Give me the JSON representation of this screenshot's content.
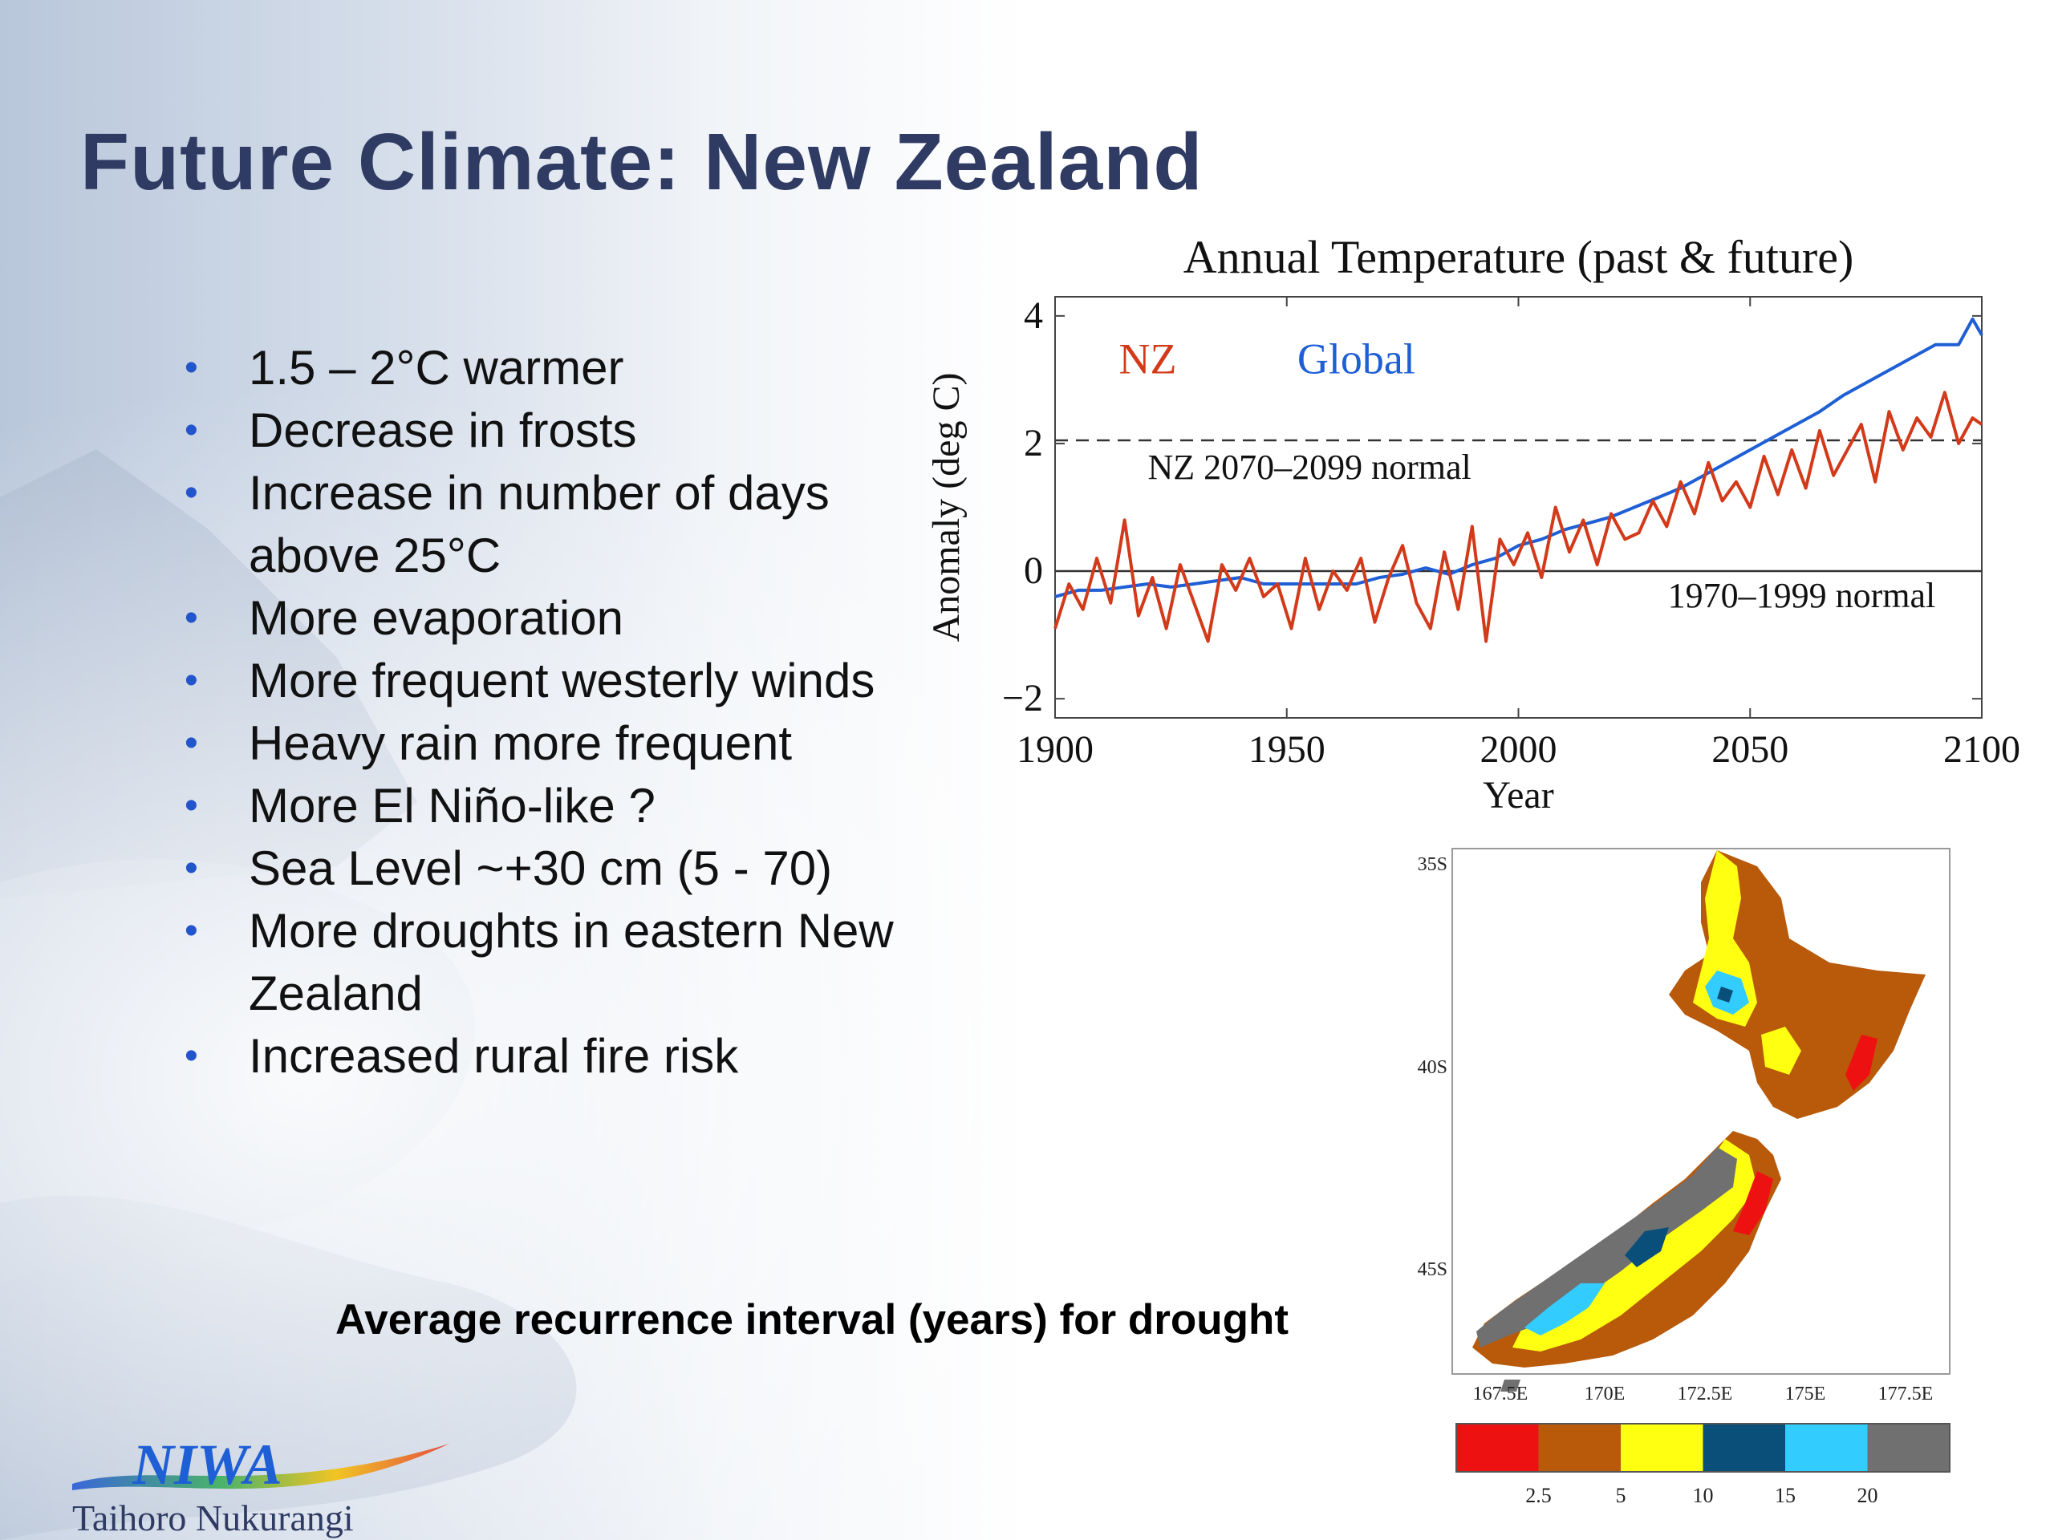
{
  "slide": {
    "title": "Future Climate: New Zealand",
    "bullets": [
      "1.5 – 2°C warmer",
      "Decrease in frosts",
      "Increase in number of days above 25°C",
      "More evaporation",
      "More frequent westerly winds",
      "Heavy rain more frequent",
      "More El Niño-like ?",
      "Sea Level ~+30 cm (5 - 70)",
      "More droughts in eastern New Zealand",
      "Increased rural fire risk"
    ],
    "caption": "Average recurrence interval (years) for drought",
    "logo": {
      "name": "NIWA",
      "subtitle": "Taihoro Nukurangi"
    }
  },
  "chart_data": [
    {
      "type": "line",
      "title": "Annual Temperature (past & future)",
      "xlabel": "Year",
      "ylabel": "Anomaly (deg C)",
      "xlim": [
        1900,
        2100
      ],
      "ylim": [
        -2.3,
        4.3
      ],
      "xticks": [
        1900,
        1950,
        2000,
        2050,
        2100
      ],
      "yticks": [
        -2,
        0,
        2,
        4
      ],
      "legend_labels": [
        {
          "text": "NZ",
          "color": "#d23a1a"
        },
        {
          "text": "Global",
          "color": "#1f5fd6"
        }
      ],
      "reference_lines": [
        {
          "y": 2.05,
          "style": "dashed",
          "label": "NZ 2070–2099 normal"
        },
        {
          "y": 0,
          "style": "solid",
          "label": "1970–1999 normal"
        }
      ],
      "series": [
        {
          "color": "#1f5fd6",
          "x": [
            1900,
            1905,
            1910,
            1915,
            1920,
            1925,
            1930,
            1935,
            1940,
            1945,
            1950,
            1955,
            1960,
            1965,
            1970,
            1975,
            1980,
            1985,
            1990,
            1995,
            2000,
            2005,
            2010,
            2015,
            2020,
            2025,
            2030,
            2035,
            2040,
            2045,
            2050,
            2055,
            2060,
            2065,
            2070,
            2075,
            2080,
            2085,
            2090,
            2095,
            2098,
            2100
          ],
          "y": [
            -0.4,
            -0.3,
            -0.3,
            -0.25,
            -0.2,
            -0.25,
            -0.2,
            -0.15,
            -0.1,
            -0.2,
            -0.2,
            -0.2,
            -0.2,
            -0.2,
            -0.1,
            -0.05,
            0.05,
            -0.05,
            0.1,
            0.2,
            0.4,
            0.5,
            0.65,
            0.75,
            0.85,
            1.0,
            1.15,
            1.3,
            1.5,
            1.7,
            1.9,
            2.1,
            2.3,
            2.5,
            2.75,
            2.95,
            3.15,
            3.35,
            3.55,
            3.55,
            3.95,
            3.7
          ]
        },
        {
          "color": "#d23a1a",
          "x": [
            1900,
            1903,
            1906,
            1909,
            1912,
            1915,
            1918,
            1921,
            1924,
            1927,
            1930,
            1933,
            1936,
            1939,
            1942,
            1945,
            1948,
            1951,
            1954,
            1957,
            1960,
            1963,
            1966,
            1969,
            1972,
            1975,
            1978,
            1981,
            1984,
            1987,
            1990,
            1993,
            1996,
            1999,
            2002,
            2005,
            2008,
            2011,
            2014,
            2017,
            2020,
            2023,
            2026,
            2029,
            2032,
            2035,
            2038,
            2041,
            2044,
            2047,
            2050,
            2053,
            2056,
            2059,
            2062,
            2065,
            2068,
            2071,
            2074,
            2077,
            2080,
            2083,
            2086,
            2089,
            2092,
            2095,
            2098,
            2100
          ],
          "y": [
            -0.9,
            -0.2,
            -0.6,
            0.2,
            -0.5,
            0.8,
            -0.7,
            -0.1,
            -0.9,
            0.1,
            -0.5,
            -1.1,
            0.1,
            -0.3,
            0.2,
            -0.4,
            -0.2,
            -0.9,
            0.2,
            -0.6,
            0.0,
            -0.3,
            0.2,
            -0.8,
            -0.1,
            0.4,
            -0.5,
            -0.9,
            0.3,
            -0.6,
            0.7,
            -1.1,
            0.5,
            0.1,
            0.6,
            -0.1,
            1.0,
            0.3,
            0.8,
            0.1,
            0.9,
            0.5,
            0.6,
            1.1,
            0.7,
            1.4,
            0.9,
            1.7,
            1.1,
            1.4,
            1.0,
            1.8,
            1.2,
            1.9,
            1.3,
            2.2,
            1.5,
            1.9,
            2.3,
            1.4,
            2.5,
            1.9,
            2.4,
            2.1,
            2.8,
            2.0,
            2.4,
            2.3
          ]
        }
      ]
    },
    {
      "type": "heatmap",
      "axis_x_ticks": [
        "167.5E",
        "170E",
        "172.5E",
        "175E",
        "177.5E"
      ],
      "axis_y_ticks": [
        "35S",
        "40S",
        "45S"
      ],
      "colorbar": {
        "colors": [
          "#ee1111",
          "#b85a0a",
          "#ffff11",
          "#0a4f7a",
          "#33ccff",
          "#707070"
        ],
        "tick_labels": [
          "2.5",
          "5",
          "10",
          "15",
          "20"
        ]
      }
    }
  ]
}
